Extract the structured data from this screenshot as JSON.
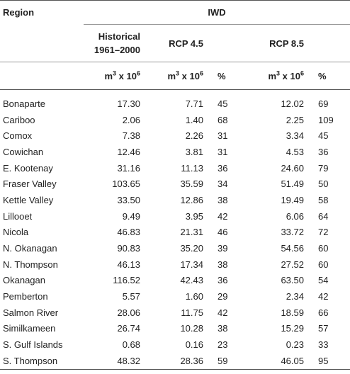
{
  "header": {
    "region": "Region",
    "iwd": "IWD",
    "historical_line1": "Historical",
    "historical_line2": "1961–2000",
    "rcp45": "RCP 4.5",
    "rcp85": "RCP 8.5",
    "unit_base": "m",
    "unit_exp1": "3",
    "unit_times": " x 10",
    "unit_exp2": "6",
    "pct": "%"
  },
  "rows": [
    {
      "region": "Bonaparte",
      "hist": "17.30",
      "r45": "7.71",
      "p45": "45",
      "r85": "12.02",
      "p85": "69"
    },
    {
      "region": "Cariboo",
      "hist": "2.06",
      "r45": "1.40",
      "p45": "68",
      "r85": "2.25",
      "p85": "109"
    },
    {
      "region": "Comox",
      "hist": "7.38",
      "r45": "2.26",
      "p45": "31",
      "r85": "3.34",
      "p85": "45"
    },
    {
      "region": "Cowichan",
      "hist": "12.46",
      "r45": "3.81",
      "p45": "31",
      "r85": "4.53",
      "p85": "36"
    },
    {
      "region": "E. Kootenay",
      "hist": "31.16",
      "r45": "11.13",
      "p45": "36",
      "r85": "24.60",
      "p85": "79"
    },
    {
      "region": "Fraser Valley",
      "hist": "103.65",
      "r45": "35.59",
      "p45": "34",
      "r85": "51.49",
      "p85": "50"
    },
    {
      "region": "Kettle Valley",
      "hist": "33.50",
      "r45": "12.86",
      "p45": "38",
      "r85": "19.49",
      "p85": "58"
    },
    {
      "region": "Lillooet",
      "hist": "9.49",
      "r45": "3.95",
      "p45": "42",
      "r85": "6.06",
      "p85": "64"
    },
    {
      "region": "Nicola",
      "hist": "46.83",
      "r45": "21.31",
      "p45": "46",
      "r85": "33.72",
      "p85": "72"
    },
    {
      "region": "N. Okanagan",
      "hist": "90.83",
      "r45": "35.20",
      "p45": "39",
      "r85": "54.56",
      "p85": "60"
    },
    {
      "region": "N. Thompson",
      "hist": "46.13",
      "r45": "17.34",
      "p45": "38",
      "r85": "27.52",
      "p85": "60"
    },
    {
      "region": "Okanagan",
      "hist": "116.52",
      "r45": "42.43",
      "p45": "36",
      "r85": "63.50",
      "p85": "54"
    },
    {
      "region": "Pemberton",
      "hist": "5.57",
      "r45": "1.60",
      "p45": "29",
      "r85": "2.34",
      "p85": "42"
    },
    {
      "region": "Salmon River",
      "hist": "28.06",
      "r45": "11.75",
      "p45": "42",
      "r85": "18.59",
      "p85": "66"
    },
    {
      "region": "Similkameen",
      "hist": "26.74",
      "r45": "10.28",
      "p45": "38",
      "r85": "15.29",
      "p85": "57"
    },
    {
      "region": "S. Gulf Islands",
      "hist": "0.68",
      "r45": "0.16",
      "p45": "23",
      "r85": "0.23",
      "p85": "33"
    },
    {
      "region": "S. Thompson",
      "hist": "48.32",
      "r45": "28.36",
      "p45": "59",
      "r85": "46.05",
      "p85": "95"
    }
  ]
}
